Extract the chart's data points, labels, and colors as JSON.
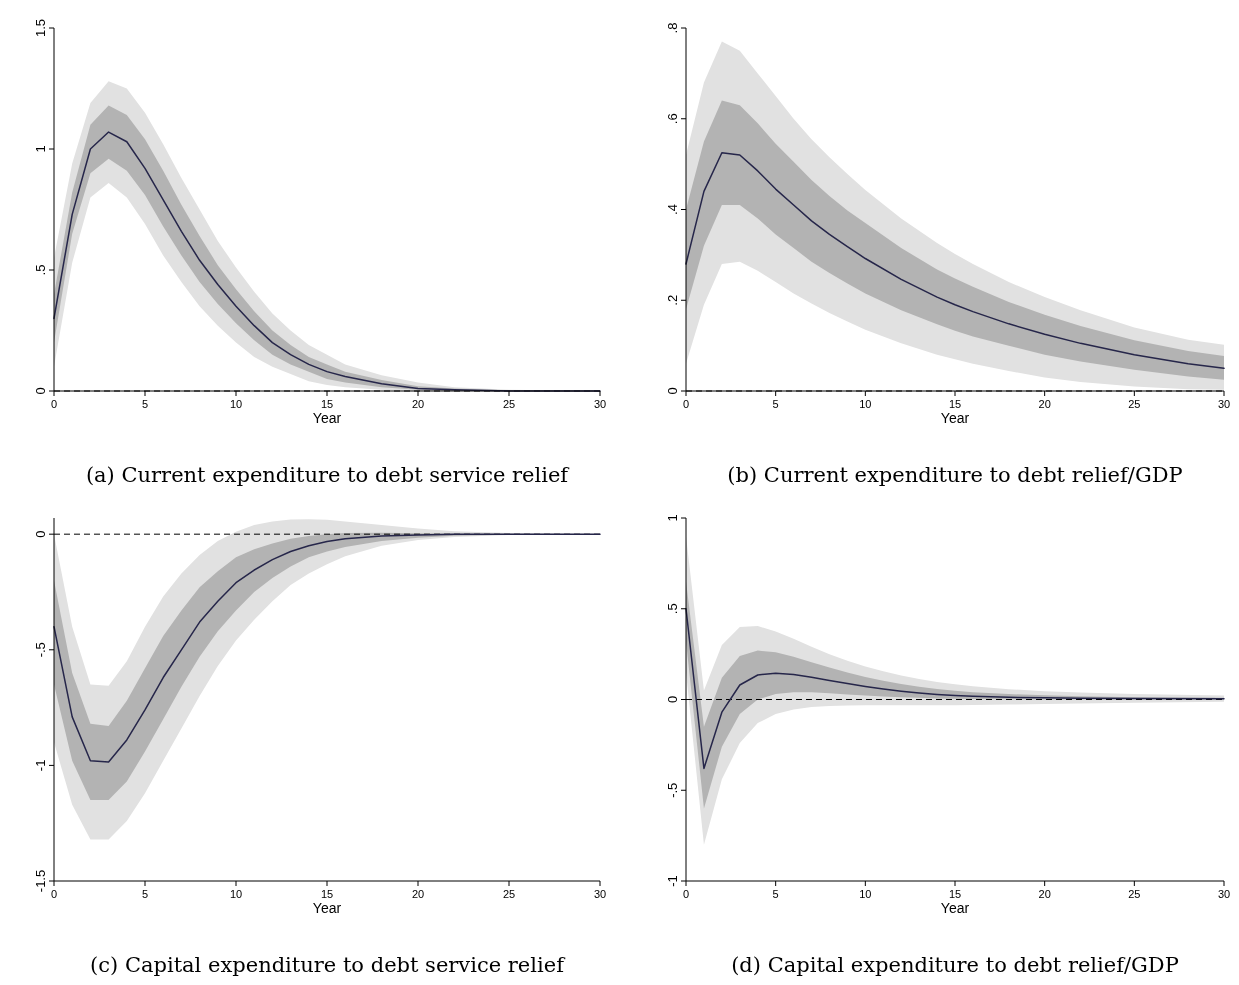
{
  "chart_data": [
    {
      "type": "line",
      "title": "(a) Current expenditure to debt service relief",
      "xlabel": "Year",
      "xlim": [
        0,
        30
      ],
      "xticks": [
        0,
        5,
        10,
        15,
        20,
        25,
        30
      ],
      "ylim": [
        0,
        1.5
      ],
      "yticks": [
        0,
        {
          "value": 0.5,
          "label": ".5"
        },
        1,
        1.5
      ],
      "x": [
        0,
        1,
        2,
        3,
        4,
        5,
        6,
        7,
        8,
        9,
        10,
        11,
        12,
        13,
        14,
        15,
        16,
        18,
        20,
        22,
        25,
        30
      ],
      "ref_lines": [
        {
          "axis": "y",
          "value": 0,
          "color": "#000000",
          "line_style": "dashed"
        }
      ],
      "series": [
        {
          "color": "#e1e1e1",
          "values": [
            null,
            null,
            null,
            null,
            null,
            null,
            null,
            null,
            null,
            null,
            null,
            null,
            null,
            null,
            null,
            null,
            null,
            null,
            null,
            null,
            null,
            null
          ],
          "lower": [
            0.1,
            0.53,
            0.8,
            0.86,
            0.8,
            0.69,
            0.56,
            0.45,
            0.35,
            0.27,
            0.2,
            0.14,
            0.1,
            0.07,
            0.04,
            0.025,
            0.015,
            0.005,
            0,
            0,
            0,
            0
          ],
          "upper": [
            0.55,
            0.94,
            1.19,
            1.28,
            1.25,
            1.15,
            1.02,
            0.88,
            0.75,
            0.62,
            0.51,
            0.41,
            0.32,
            0.25,
            0.19,
            0.15,
            0.11,
            0.065,
            0.035,
            0.015,
            0.005,
            0
          ]
        },
        {
          "color": "#b3b3b3",
          "values": [
            null,
            null,
            null,
            null,
            null,
            null,
            null,
            null,
            null,
            null,
            null,
            null,
            null,
            null,
            null,
            null,
            null,
            null,
            null,
            null,
            null,
            null
          ],
          "lower": [
            0.2,
            0.65,
            0.9,
            0.96,
            0.91,
            0.81,
            0.68,
            0.56,
            0.45,
            0.36,
            0.28,
            0.21,
            0.15,
            0.11,
            0.08,
            0.05,
            0.035,
            0.015,
            0.005,
            0,
            0,
            0
          ],
          "upper": [
            0.4,
            0.82,
            1.1,
            1.18,
            1.14,
            1.04,
            0.91,
            0.77,
            0.64,
            0.52,
            0.42,
            0.33,
            0.25,
            0.19,
            0.14,
            0.11,
            0.08,
            0.045,
            0.02,
            0.01,
            0.003,
            0
          ]
        },
        {
          "color": "#26264a",
          "values": [
            0.3,
            0.73,
            1.0,
            1.07,
            1.03,
            0.92,
            0.79,
            0.66,
            0.54,
            0.44,
            0.35,
            0.27,
            0.2,
            0.15,
            0.11,
            0.08,
            0.06,
            0.03,
            0.01,
            0.005,
            0,
            0
          ]
        }
      ]
    },
    {
      "type": "line",
      "title": "(b) Current expenditure to debt relief/GDP",
      "xlabel": "Year",
      "xlim": [
        0,
        30
      ],
      "xticks": [
        0,
        5,
        10,
        15,
        20,
        25,
        30
      ],
      "ylim": [
        0,
        0.8
      ],
      "yticks": [
        0,
        {
          "value": 0.2,
          "label": ".2"
        },
        {
          "value": 0.4,
          "label": ".4"
        },
        {
          "value": 0.6,
          "label": ".6"
        },
        {
          "value": 0.8,
          "label": ".8"
        }
      ],
      "x": [
        0,
        1,
        2,
        3,
        4,
        5,
        6,
        7,
        8,
        9,
        10,
        12,
        14,
        15,
        16,
        18,
        20,
        22,
        25,
        28,
        30
      ],
      "ref_lines": [
        {
          "axis": "y",
          "value": 0,
          "color": "#000000",
          "line_style": "dashed"
        }
      ],
      "series": [
        {
          "color": "#e1e1e1",
          "values": [
            null,
            null,
            null,
            null,
            null,
            null,
            null,
            null,
            null,
            null,
            null,
            null,
            null,
            null,
            null,
            null,
            null,
            null,
            null,
            null,
            null
          ],
          "lower": [
            0.06,
            0.19,
            0.28,
            0.285,
            0.265,
            0.24,
            0.215,
            0.193,
            0.172,
            0.153,
            0.135,
            0.105,
            0.08,
            0.07,
            0.06,
            0.044,
            0.03,
            0.02,
            0.01,
            0.004,
            0.003
          ],
          "upper": [
            0.52,
            0.68,
            0.77,
            0.75,
            0.7,
            0.65,
            0.6,
            0.555,
            0.515,
            0.478,
            0.443,
            0.38,
            0.326,
            0.302,
            0.28,
            0.24,
            0.207,
            0.178,
            0.14,
            0.113,
            0.102
          ]
        },
        {
          "color": "#b3b3b3",
          "values": [
            null,
            null,
            null,
            null,
            null,
            null,
            null,
            null,
            null,
            null,
            null,
            null,
            null,
            null,
            null,
            null,
            null,
            null,
            null,
            null,
            null
          ],
          "lower": [
            0.18,
            0.32,
            0.41,
            0.41,
            0.38,
            0.345,
            0.315,
            0.285,
            0.26,
            0.237,
            0.215,
            0.178,
            0.147,
            0.133,
            0.12,
            0.1,
            0.08,
            0.065,
            0.047,
            0.032,
            0.025
          ],
          "upper": [
            0.4,
            0.55,
            0.64,
            0.63,
            0.59,
            0.545,
            0.505,
            0.465,
            0.43,
            0.398,
            0.37,
            0.315,
            0.268,
            0.248,
            0.23,
            0.196,
            0.168,
            0.143,
            0.112,
            0.088,
            0.077
          ]
        },
        {
          "color": "#26264a",
          "values": [
            0.28,
            0.44,
            0.525,
            0.52,
            0.485,
            0.445,
            0.41,
            0.375,
            0.345,
            0.318,
            0.292,
            0.246,
            0.207,
            0.19,
            0.175,
            0.148,
            0.125,
            0.105,
            0.08,
            0.06,
            0.05
          ]
        }
      ]
    },
    {
      "type": "line",
      "title": "(c) Capital expenditure to debt service relief",
      "xlabel": "Year",
      "xlim": [
        0,
        30
      ],
      "xticks": [
        0,
        5,
        10,
        15,
        20,
        25,
        30
      ],
      "ylim": [
        -1.5,
        0.07
      ],
      "yticks": [
        -1.5,
        -1,
        {
          "value": -0.5,
          "label": "-.5"
        },
        0
      ],
      "x": [
        0,
        1,
        2,
        3,
        4,
        5,
        6,
        7,
        8,
        9,
        10,
        11,
        12,
        13,
        14,
        15,
        16,
        18,
        20,
        22,
        25,
        30
      ],
      "ref_lines": [
        {
          "axis": "y",
          "value": 0,
          "color": "#000000",
          "line_style": "dashed"
        }
      ],
      "series": [
        {
          "color": "#e1e1e1",
          "values": [
            null,
            null,
            null,
            null,
            null,
            null,
            null,
            null,
            null,
            null,
            null,
            null,
            null,
            null,
            null,
            null,
            null,
            null,
            null,
            null,
            null,
            null
          ],
          "lower": [
            -0.9,
            -1.17,
            -1.32,
            -1.32,
            -1.24,
            -1.12,
            -0.98,
            -0.84,
            -0.7,
            -0.57,
            -0.46,
            -0.37,
            -0.29,
            -0.22,
            -0.17,
            -0.13,
            -0.095,
            -0.05,
            -0.025,
            -0.012,
            -0.004,
            0
          ],
          "upper": [
            0,
            -0.4,
            -0.65,
            -0.655,
            -0.55,
            -0.4,
            -0.27,
            -0.17,
            -0.09,
            -0.03,
            0.01,
            0.04,
            0.055,
            0.063,
            0.065,
            0.062,
            0.055,
            0.04,
            0.025,
            0.013,
            0.005,
            0.001
          ]
        },
        {
          "color": "#b3b3b3",
          "values": [
            null,
            null,
            null,
            null,
            null,
            null,
            null,
            null,
            null,
            null,
            null,
            null,
            null,
            null,
            null,
            null,
            null,
            null,
            null,
            null,
            null,
            null
          ],
          "lower": [
            -0.65,
            -0.98,
            -1.15,
            -1.15,
            -1.07,
            -0.94,
            -0.8,
            -0.66,
            -0.53,
            -0.42,
            -0.33,
            -0.25,
            -0.19,
            -0.14,
            -0.1,
            -0.075,
            -0.055,
            -0.03,
            -0.015,
            -0.007,
            -0.002,
            0
          ],
          "upper": [
            -0.2,
            -0.6,
            -0.82,
            -0.83,
            -0.72,
            -0.58,
            -0.44,
            -0.33,
            -0.23,
            -0.16,
            -0.1,
            -0.065,
            -0.04,
            -0.02,
            -0.008,
            0,
            0.005,
            0.006,
            0.004,
            0.002,
            0.001,
            0
          ]
        },
        {
          "color": "#26264a",
          "values": [
            -0.4,
            -0.79,
            -0.98,
            -0.985,
            -0.89,
            -0.76,
            -0.62,
            -0.5,
            -0.38,
            -0.29,
            -0.21,
            -0.155,
            -0.11,
            -0.075,
            -0.05,
            -0.032,
            -0.02,
            -0.008,
            -0.003,
            0,
            0,
            0
          ]
        }
      ]
    },
    {
      "type": "line",
      "title": "(d) Capital expenditure to debt relief/GDP",
      "xlabel": "Year",
      "xlim": [
        0,
        30
      ],
      "xticks": [
        0,
        5,
        10,
        15,
        20,
        25,
        30
      ],
      "ylim": [
        -1,
        1
      ],
      "yticks": [
        -1,
        {
          "value": -0.5,
          "label": "-.5"
        },
        0,
        {
          "value": 0.5,
          "label": ".5"
        },
        1
      ],
      "x": [
        0,
        1,
        2,
        3,
        4,
        5,
        6,
        7,
        8,
        9,
        10,
        11,
        12,
        13,
        14,
        15,
        16,
        18,
        20,
        22,
        25,
        30
      ],
      "ref_lines": [
        {
          "axis": "y",
          "value": 0,
          "color": "#000000",
          "line_style": "dashed"
        }
      ],
      "series": [
        {
          "color": "#e1e1e1",
          "values": [
            null,
            null,
            null,
            null,
            null,
            null,
            null,
            null,
            null,
            null,
            null,
            null,
            null,
            null,
            null,
            null,
            null,
            null,
            null,
            null,
            null,
            null
          ],
          "lower": [
            0.15,
            -0.8,
            -0.44,
            -0.24,
            -0.13,
            -0.08,
            -0.055,
            -0.042,
            -0.036,
            -0.033,
            -0.032,
            -0.032,
            -0.032,
            -0.032,
            -0.032,
            -0.031,
            -0.03,
            -0.028,
            -0.025,
            -0.022,
            -0.018,
            -0.012
          ],
          "upper": [
            0.9,
            0.05,
            0.3,
            0.4,
            0.405,
            0.375,
            0.335,
            0.29,
            0.25,
            0.213,
            0.182,
            0.155,
            0.132,
            0.113,
            0.097,
            0.084,
            0.073,
            0.057,
            0.046,
            0.038,
            0.03,
            0.022
          ]
        },
        {
          "color": "#b3b3b3",
          "values": [
            null,
            null,
            null,
            null,
            null,
            null,
            null,
            null,
            null,
            null,
            null,
            null,
            null,
            null,
            null,
            null,
            null,
            null,
            null,
            null,
            null,
            null
          ],
          "lower": [
            0.32,
            -0.6,
            -0.26,
            -0.08,
            0,
            0.03,
            0.04,
            0.04,
            0.035,
            0.028,
            0.022,
            0.016,
            0.012,
            0.009,
            0.006,
            0.004,
            0.003,
            0.001,
            0,
            0,
            0,
            0
          ],
          "upper": [
            0.65,
            -0.15,
            0.12,
            0.24,
            0.27,
            0.26,
            0.235,
            0.205,
            0.176,
            0.149,
            0.124,
            0.103,
            0.085,
            0.07,
            0.058,
            0.048,
            0.04,
            0.03,
            0.023,
            0.018,
            0.013,
            0.01
          ]
        },
        {
          "color": "#26264a",
          "values": [
            0.5,
            -0.38,
            -0.07,
            0.08,
            0.135,
            0.145,
            0.138,
            0.123,
            0.105,
            0.088,
            0.072,
            0.058,
            0.046,
            0.036,
            0.028,
            0.022,
            0.018,
            0.012,
            0.009,
            0.007,
            0.005,
            0.004
          ]
        }
      ]
    }
  ]
}
